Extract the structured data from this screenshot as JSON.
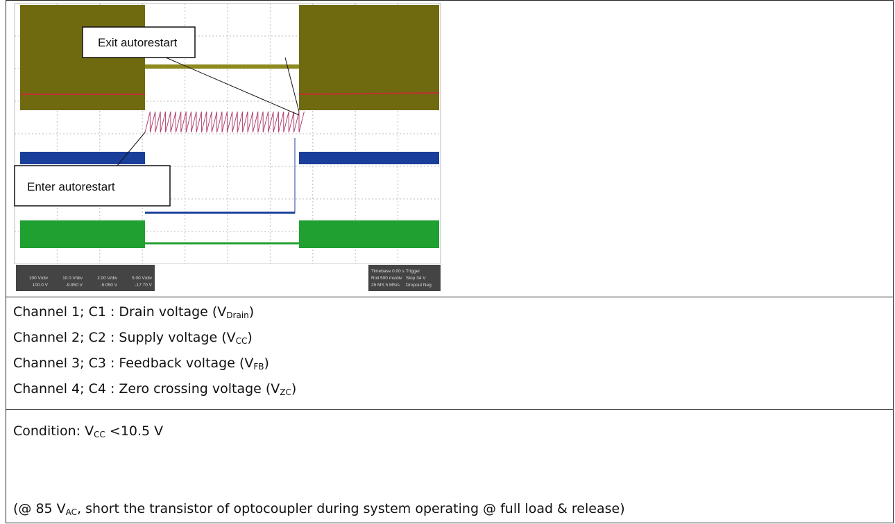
{
  "scope": {
    "exit_label": "Exit autorestart",
    "enter_label": "Enter autorestart",
    "channels": [
      "100 V/div",
      "100.0 V",
      "10.0 V/div",
      "-9.950 V",
      "2.00 V/div",
      "-5.050 V",
      "5.00 V/div",
      "-17.70 V"
    ],
    "status": [
      "Timebase 0.00 s",
      "Trigger",
      "Roll 500 ms/div",
      "Stop 34 V",
      "25 MS 5 MS/s",
      "Dropout Neg"
    ]
  },
  "channels_list": [
    {
      "text": "Channel 1; C1 : Drain voltage (V",
      "sub": "Drain",
      "end": ")"
    },
    {
      "text": "Channel 2; C2 : Supply voltage (V",
      "sub": "CC",
      "end": ")"
    },
    {
      "text": "Channel 3; C3 : Feedback voltage (V",
      "sub": "FB",
      "end": ")"
    },
    {
      "text": "Channel 4; C4 : Zero crossing voltage (V",
      "sub": "ZC",
      "end": ")"
    }
  ],
  "condition": {
    "text": "Condition: V",
    "sub": "CC",
    "end": " <10.5 V"
  },
  "note": {
    "text": "(@ 85 V",
    "sub": "AC",
    "end": ", short the transistor of optocoupler during system operating @ full load & release)"
  }
}
